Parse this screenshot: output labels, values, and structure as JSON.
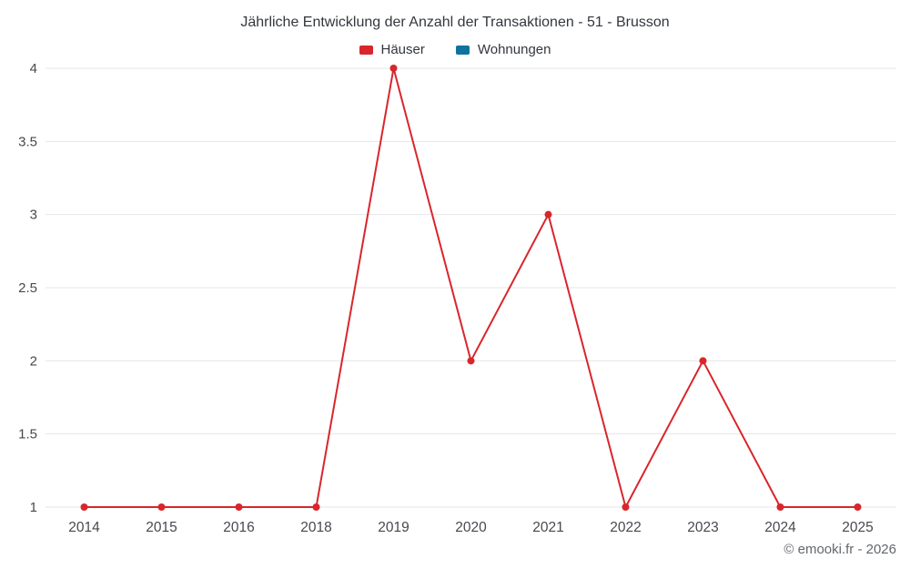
{
  "chart_data": {
    "type": "line",
    "title": "Jährliche Entwicklung der Anzahl der Transaktionen - 51 - Brusson",
    "categories": [
      "2014",
      "2015",
      "2016",
      "2018",
      "2019",
      "2020",
      "2021",
      "2022",
      "2023",
      "2024",
      "2025"
    ],
    "series": [
      {
        "name": "Häuser",
        "color": "#d8262c",
        "values": [
          1,
          1,
          1,
          1,
          4,
          2,
          3,
          1,
          2,
          1,
          1
        ]
      },
      {
        "name": "Wohnungen",
        "color": "#10739e",
        "values": []
      }
    ],
    "xlabel": "",
    "ylabel": "",
    "ylim": [
      1,
      4
    ],
    "yticks": [
      1,
      1.5,
      2,
      2.5,
      3,
      3.5,
      4
    ],
    "grid": true,
    "legend_position": "top",
    "grid_color": "#e6e6e6",
    "axis_text_color": "#45494f"
  },
  "footer": {
    "attribution": "© emooki.fr - 2026"
  }
}
